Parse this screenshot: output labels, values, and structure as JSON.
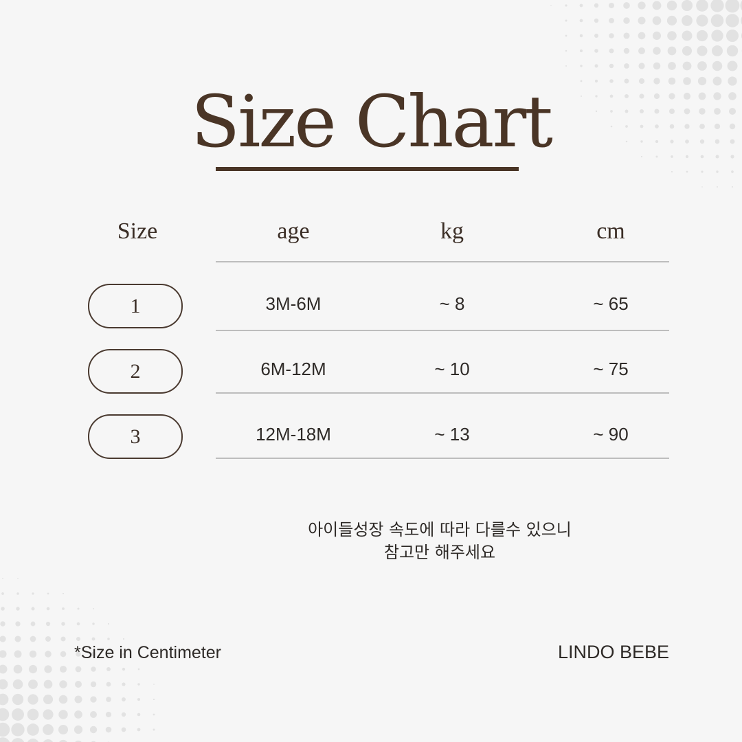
{
  "title": "Size Chart",
  "headers": [
    "Size",
    "age",
    "kg",
    "cm"
  ],
  "rows": [
    {
      "size": "1",
      "age": "3M-6M",
      "kg": "~ 8",
      "cm": "~ 65"
    },
    {
      "size": "2",
      "age": "6M-12M",
      "kg": "~ 10",
      "cm": "~ 75"
    },
    {
      "size": "3",
      "age": "12M-18M",
      "kg": "~ 13",
      "cm": "~ 90"
    }
  ],
  "note": {
    "line1": "아이들성장 속도에 따라 다를수 있으니",
    "line2": "참고만 해주세요"
  },
  "footer": {
    "left": "*Size in Centimeter",
    "right": "LINDO BEBE"
  },
  "colors": {
    "background": "#f6f6f6",
    "accent": "#4a3526",
    "rule": "#bdbdbd",
    "dots": "#e2e2e2"
  }
}
